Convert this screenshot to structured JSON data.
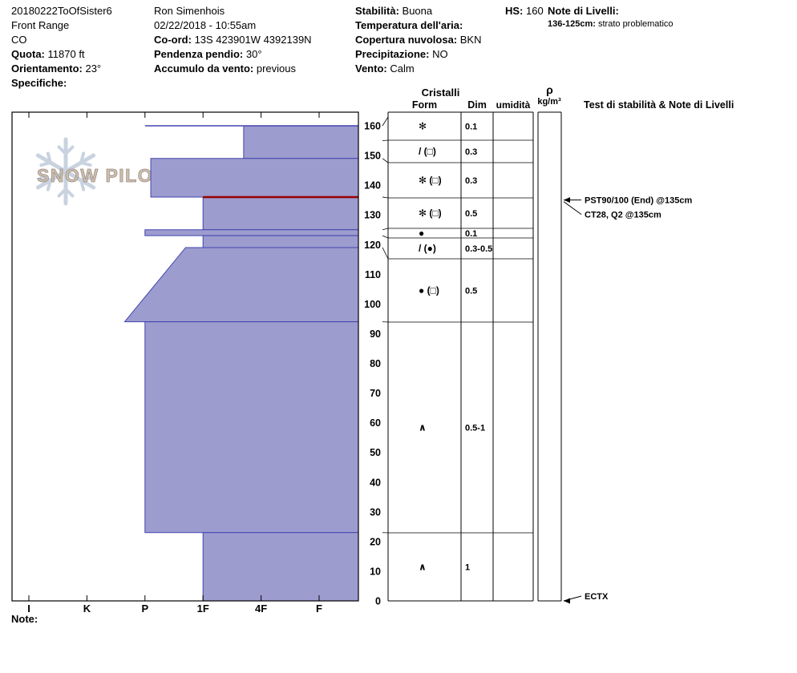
{
  "header": {
    "pit_info": {
      "pit_name": "20180222ToOfSister6",
      "range": "Front Range",
      "state": "CO",
      "elevation_label": "Quota:",
      "elevation": "11870 ft",
      "aspect_label": "Orientamento:",
      "aspect": "23°",
      "specifics_label": "Specifiche:",
      "specifics": ""
    },
    "observer": {
      "name": "Ron Simenhois",
      "datetime": "02/22/2018 - 10:55am",
      "coord_label": "Co-ord:",
      "coord": "13S 423901W 4392139N",
      "slope_label": "Pendenza pendio:",
      "slope": "30°",
      "wind_loading_label": "Accumulo da vento:",
      "wind_loading": "previous"
    },
    "conditions": {
      "stability_label": "Stabilità:",
      "stability": "Buona",
      "air_temp_label": "Temperatura dell'aria:",
      "air_temp": "",
      "sky_label": "Copertura nuvolosa:",
      "sky": "BKN",
      "precip_label": "Precipitazione:",
      "precip": "NO",
      "wind_label": "Vento:",
      "wind": "Calm"
    },
    "hs_label": "HS:",
    "hs": "160",
    "layer_notes_label": "Note di Livelli:",
    "layer_note": {
      "depth": "136-125cm:",
      "text": "strato problematico"
    }
  },
  "table_headers": {
    "cristalli": "Cristalli",
    "form": "Form",
    "dim": "Dim",
    "umidita": "umidità",
    "rho": "ρ",
    "rho_units": "kg/m³",
    "tests": "Test di stabilità & Note di Livelli"
  },
  "logo": {
    "text": "SNOW PILOT"
  },
  "note_label": "Note:",
  "chart_data": {
    "type": "snow-profile",
    "depth_axis": {
      "unit": "cm",
      "min": 0,
      "max": 160,
      "ticks": [
        160,
        150,
        140,
        130,
        120,
        110,
        100,
        90,
        80,
        70,
        60,
        50,
        40,
        30,
        20,
        10,
        0
      ]
    },
    "hardness_axis": {
      "categories": [
        "I",
        "K",
        "P",
        "1F",
        "4F",
        "F"
      ],
      "values": {
        "I": 6,
        "K": 5,
        "P": 4,
        "1F": 3,
        "4F": 2,
        "F": 1
      },
      "order": "hard-to-soft"
    },
    "layers": [
      {
        "top_cm": 160,
        "bottom_cm": 149,
        "hardness": "4F+",
        "hardness_value": 2.3
      },
      {
        "top_cm": 149,
        "bottom_cm": 136,
        "hardness": "P-",
        "hardness_value": 3.9
      },
      {
        "top_cm": 136,
        "bottom_cm": 125,
        "hardness": "1F",
        "hardness_value": 3.0,
        "problem_layer": true
      },
      {
        "top_cm": 125,
        "bottom_cm": 123,
        "hardness": "P",
        "hardness_value": 4.0
      },
      {
        "top_cm": 123,
        "bottom_cm": 119,
        "hardness": "1F",
        "hardness_value": 3.0
      },
      {
        "top_cm": 119,
        "bottom_cm": 94,
        "hardness": "1F-P",
        "hardness_value": 3.3,
        "hardness_bottom": "P+",
        "hardness_value_bottom": 4.35
      },
      {
        "top_cm": 94,
        "bottom_cm": 23,
        "hardness": "P",
        "hardness_value": 4.0
      },
      {
        "top_cm": 23,
        "bottom_cm": 0,
        "hardness": "1F",
        "hardness_value": 3.0
      }
    ],
    "crystals": [
      {
        "top_cm": 160,
        "bottom_cm": 155,
        "form": "✻",
        "dim": "0.1",
        "humidity": ""
      },
      {
        "top_cm": 155,
        "bottom_cm": 149,
        "form": "/ (□)",
        "dim": "0.3",
        "humidity": ""
      },
      {
        "top_cm": 149,
        "bottom_cm": 136,
        "form": "✻ (□)",
        "dim": "0.3",
        "humidity": ""
      },
      {
        "top_cm": 136,
        "bottom_cm": 125,
        "form": "✻ (□)",
        "dim": "0.5",
        "humidity": ""
      },
      {
        "top_cm": 125,
        "bottom_cm": 123,
        "form": "●",
        "dim": "0.1",
        "humidity": ""
      },
      {
        "top_cm": 123,
        "bottom_cm": 119,
        "form": "/ (●)",
        "dim": "0.3-0.5",
        "humidity": ""
      },
      {
        "top_cm": 119,
        "bottom_cm": 94,
        "form": "● (□)",
        "dim": "0.5",
        "humidity": ""
      },
      {
        "top_cm": 94,
        "bottom_cm": 23,
        "form": "∧",
        "dim": "0.5-1",
        "humidity": ""
      },
      {
        "top_cm": 23,
        "bottom_cm": 0,
        "form": "∧",
        "dim": "1",
        "humidity": ""
      }
    ],
    "tests": [
      {
        "label": "PST90/100 (End) @135cm",
        "depth_cm": 135
      },
      {
        "label": "CT28, Q2 @135cm",
        "depth_cm": 135
      },
      {
        "label": "ECTX",
        "depth_cm": 0
      }
    ],
    "colors": {
      "bar_fill": "#9c9ccf",
      "bar_stroke": "#4444b0",
      "problem_line": "#990000",
      "logo_text": "#cdbfb1",
      "logo_text_stroke": "#9c8e80",
      "snowflake": "#c9d3e0"
    }
  }
}
